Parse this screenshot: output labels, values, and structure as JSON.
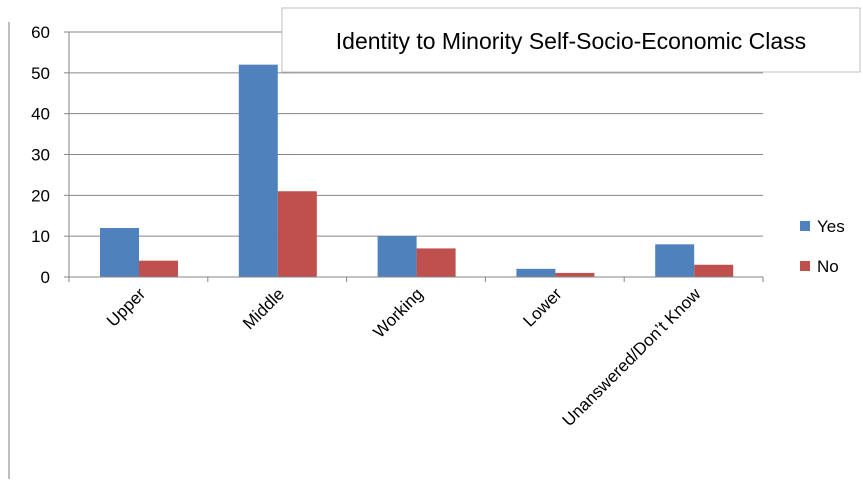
{
  "chart_data": {
    "type": "bar",
    "title": "Identity to Minority Self-Socio-Economic Class",
    "categories": [
      "Upper",
      "Middle",
      "Working",
      "Lower",
      "Unanswered/Don’t Know"
    ],
    "series": [
      {
        "name": "Yes",
        "values": [
          12,
          52,
          10,
          2,
          8
        ],
        "color": "#4f81bd"
      },
      {
        "name": "No",
        "values": [
          4,
          21,
          7,
          1,
          3
        ],
        "color": "#c0504d"
      }
    ],
    "y_ticks": [
      "0",
      "10",
      "20",
      "30",
      "40",
      "50",
      "60"
    ],
    "ylim": [
      0,
      60
    ],
    "grid": true,
    "legend_position": "right"
  }
}
